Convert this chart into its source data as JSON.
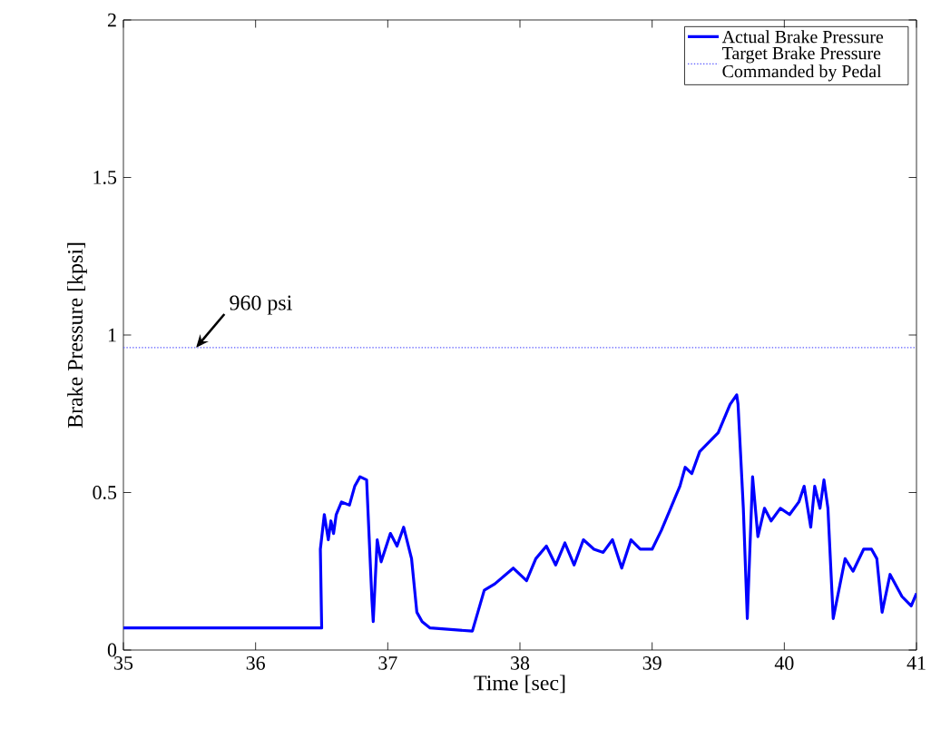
{
  "chart_data": {
    "type": "line",
    "xlabel": "Time [sec]",
    "ylabel": "Brake Pressure [kpsi]",
    "xlim": [
      35,
      41
    ],
    "ylim": [
      0,
      2
    ],
    "xticks": [
      35,
      36,
      37,
      38,
      39,
      40,
      41
    ],
    "yticks": [
      0,
      0.5,
      1,
      1.5,
      2
    ],
    "grid": false,
    "legend": "top right",
    "annotations": [
      {
        "text": "960 psi",
        "x": 35.55,
        "y": 0.96
      }
    ],
    "series": [
      {
        "name": "Actual Brake Pressure",
        "color": "#0000ff",
        "line_style": "solid",
        "x": [
          35,
          35.5,
          36,
          36.5,
          36.49,
          36.52,
          36.55,
          36.57,
          36.59,
          36.61,
          36.65,
          36.71,
          36.75,
          36.79,
          36.84,
          36.88,
          36.89,
          36.92,
          36.95,
          37.02,
          37.07,
          37.12,
          37.18,
          37.22,
          37.26,
          37.32,
          37.64,
          37.73,
          37.81,
          37.95,
          38.05,
          38.12,
          38.2,
          38.27,
          38.34,
          38.41,
          38.48,
          38.56,
          38.63,
          38.7,
          38.77,
          38.84,
          38.91,
          39.0,
          39.07,
          39.14,
          39.18,
          39.21,
          39.25,
          39.3,
          39.36,
          39.5,
          39.59,
          39.64,
          39.65,
          39.69,
          39.72,
          39.76,
          39.8,
          39.85,
          39.9,
          39.97,
          40.04,
          40.11,
          40.15,
          40.2,
          40.23,
          40.27,
          40.3,
          40.33,
          40.37,
          40.46,
          40.52,
          40.6,
          40.66,
          40.7,
          40.74,
          40.8,
          40.89,
          40.96,
          41.0
        ],
        "values": [
          0.07,
          0.07,
          0.07,
          0.07,
          0.32,
          0.43,
          0.35,
          0.41,
          0.37,
          0.43,
          0.47,
          0.46,
          0.52,
          0.55,
          0.54,
          0.16,
          0.09,
          0.35,
          0.28,
          0.37,
          0.33,
          0.39,
          0.29,
          0.12,
          0.09,
          0.07,
          0.06,
          0.19,
          0.21,
          0.26,
          0.22,
          0.29,
          0.33,
          0.27,
          0.34,
          0.27,
          0.35,
          0.32,
          0.31,
          0.35,
          0.26,
          0.35,
          0.32,
          0.32,
          0.38,
          0.45,
          0.49,
          0.52,
          0.58,
          0.56,
          0.63,
          0.69,
          0.78,
          0.81,
          0.78,
          0.45,
          0.1,
          0.55,
          0.36,
          0.45,
          0.41,
          0.45,
          0.43,
          0.47,
          0.52,
          0.39,
          0.52,
          0.45,
          0.54,
          0.45,
          0.1,
          0.29,
          0.25,
          0.32,
          0.32,
          0.29,
          0.12,
          0.24,
          0.17,
          0.14,
          0.18
        ]
      },
      {
        "name": "Target Brake Pressure Commanded by Pedal",
        "color": "#5a5aff",
        "line_style": "dotted",
        "x": [
          35,
          41
        ],
        "values": [
          0.96,
          0.96
        ]
      }
    ]
  }
}
